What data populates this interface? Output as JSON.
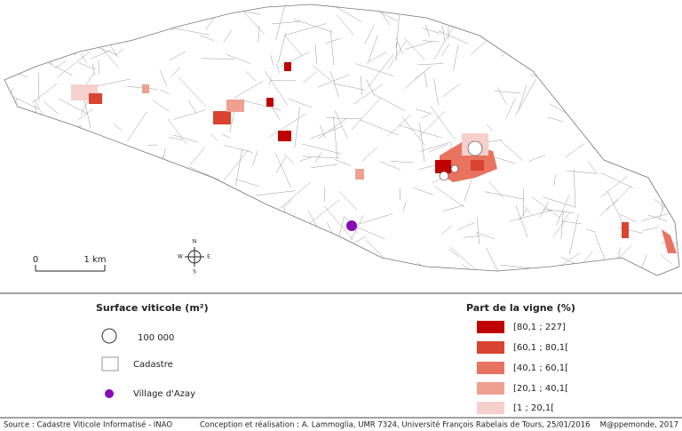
{
  "map": {
    "scale_bar": {
      "start": "0",
      "end": "1 km"
    },
    "compass": {
      "north": "N",
      "east": "E",
      "south": "S",
      "west": "W"
    }
  },
  "legend_left": {
    "title": "Surface viticole (m²)",
    "items": [
      "100 000",
      "Cadastre",
      "Village d'Azay"
    ]
  },
  "legend_right": {
    "title": "Part de la vigne (%)",
    "items": [
      "[80,1 ; 227]",
      "[60,1 ; 80,1[",
      "[40,1 ; 60,1[",
      "[20,1 ; 40,1[",
      "[1 ; 20,1["
    ]
  },
  "footer": {
    "source": "Source : Cadastre Viticole Informatisé - INAO",
    "credit": "Conception et réalisation : A. Lammoglia, UMR 7324, Université François Rabelais de Tours, 25/01/2016",
    "publisher": "M@ppemonde, 2017"
  }
}
